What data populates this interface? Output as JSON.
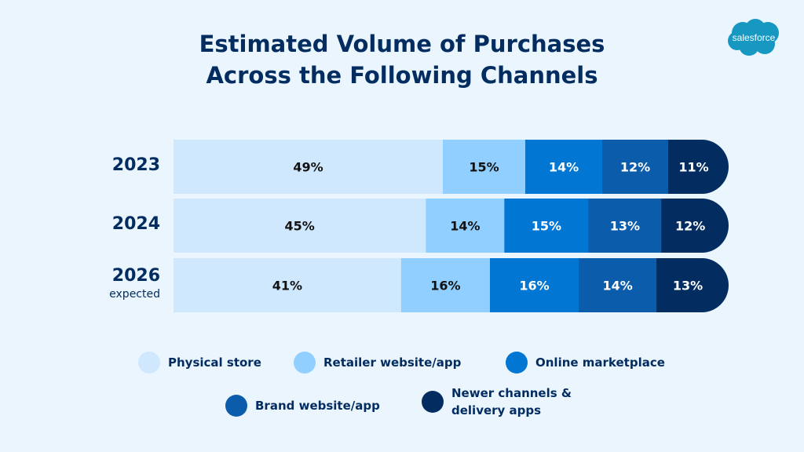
{
  "chart_data": {
    "type": "bar",
    "orientation": "horizontal",
    "stacked": true,
    "title": "Estimated Volume of Purchases Across the Following Channels",
    "title_lines": [
      "Estimated Volume of Purchases",
      "Across the Following Channels"
    ],
    "categories": [
      "2023",
      "2024",
      "2026"
    ],
    "category_sublabels": [
      "",
      "",
      "expected"
    ],
    "series": [
      {
        "name": "Physical store",
        "color": "#cfe8fd",
        "values": [
          49,
          45,
          41
        ]
      },
      {
        "name": "Retailer website/app",
        "color": "#90cfff",
        "values": [
          15,
          14,
          16
        ]
      },
      {
        "name": "Online marketplace",
        "color": "#0176d3",
        "values": [
          14,
          15,
          16
        ]
      },
      {
        "name": "Brand website/app",
        "color": "#0b5cab",
        "values": [
          12,
          13,
          14
        ]
      },
      {
        "name": "Newer channels & delivery apps",
        "color": "#032d60",
        "values": [
          11,
          12,
          13
        ]
      }
    ],
    "legend_lines": [
      [
        "Newer channels &",
        "delivery apps"
      ]
    ],
    "value_suffix": "%",
    "legend_placement": "bottom",
    "grid": false
  },
  "logo": {
    "text": "salesforce",
    "color": "#1798c1"
  },
  "colors": {
    "background": "#eaf5fe",
    "text": "#032d60"
  }
}
